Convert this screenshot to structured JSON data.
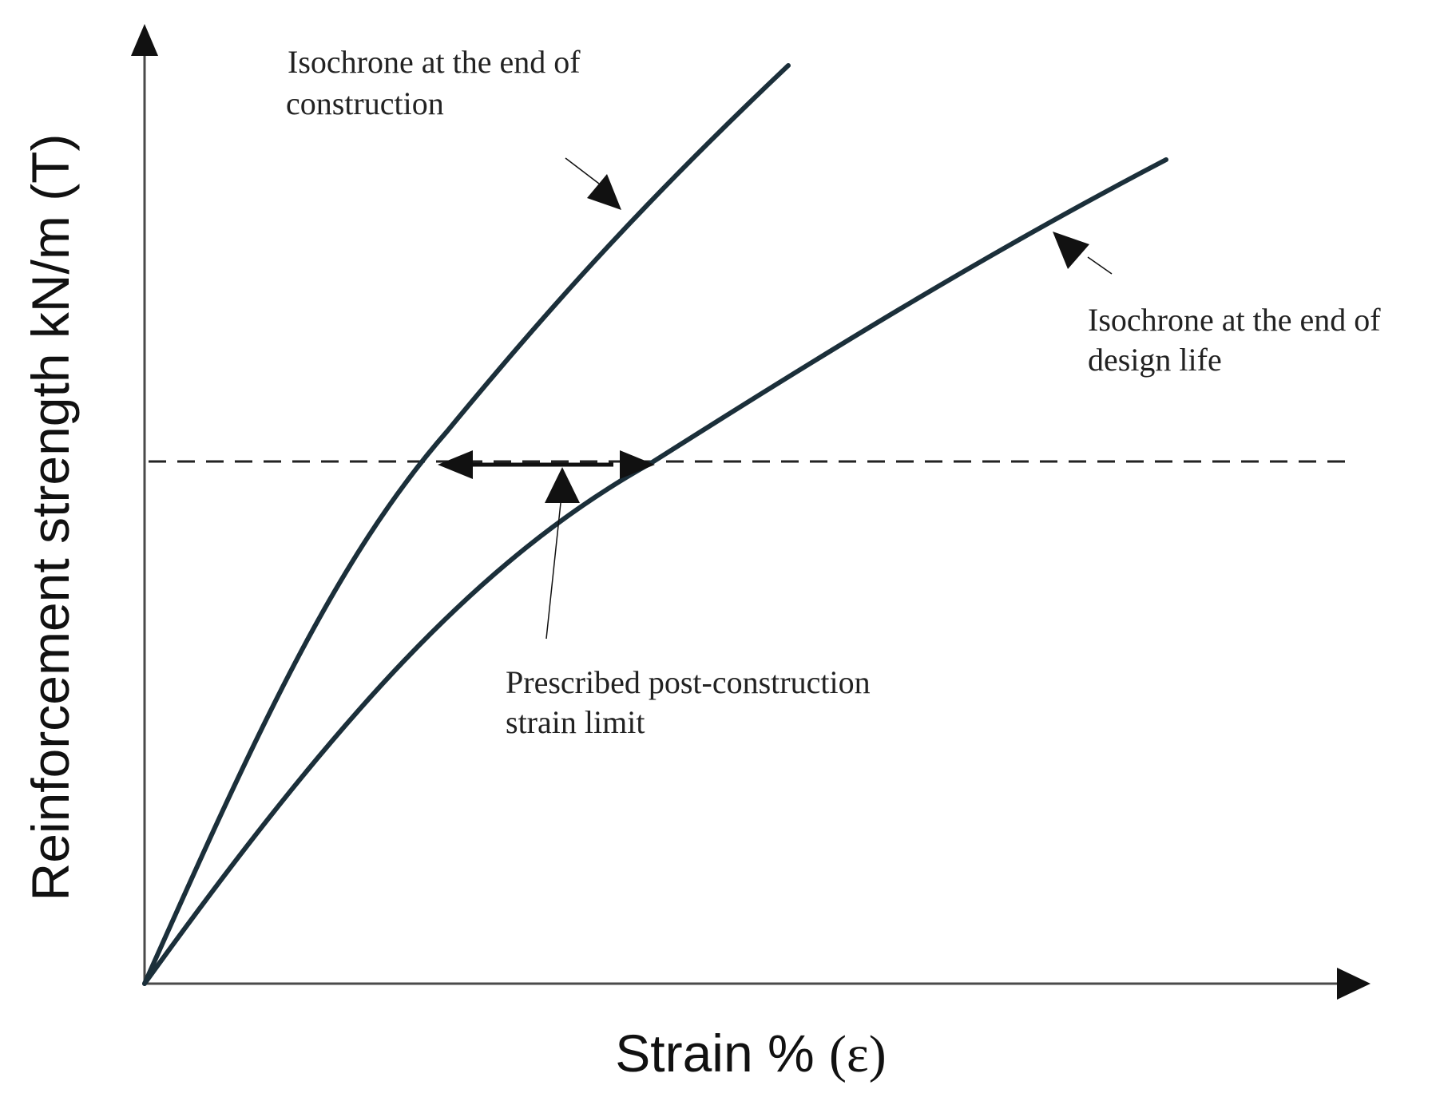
{
  "axes": {
    "y_title": "Reinforcement strength kN/m (T)",
    "x_title": "Strain % ",
    "x_symbol": "(ε)"
  },
  "annotations": {
    "construction_line1": "Isochrone at the end of",
    "construction_line2": "construction",
    "design_life_line1": "Isochrone at the end of",
    "design_life_line2": "design life",
    "strain_limit_line1": "Prescribed post-construction",
    "strain_limit_line2": "strain limit"
  },
  "colors": {
    "curve": "#1b2f3a",
    "axis": "#4a4a4a",
    "ink": "#111111"
  }
}
